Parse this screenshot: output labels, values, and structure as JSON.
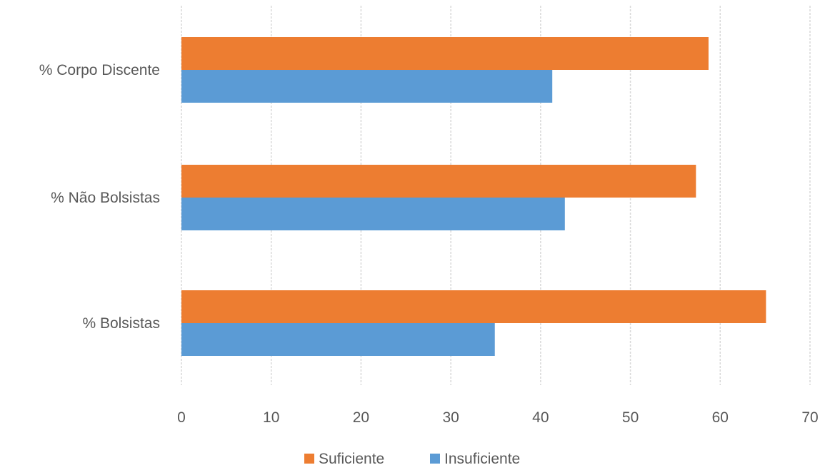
{
  "chart_data": {
    "type": "bar",
    "orientation": "horizontal",
    "categories": [
      "% Corpo Discente",
      "% Não Bolsistas",
      "% Bolsistas"
    ],
    "series": [
      {
        "name": "Suficiente",
        "color": "#ED7D31",
        "values": [
          58.7,
          57.3,
          65.1
        ]
      },
      {
        "name": "Insuficiente",
        "color": "#5B9BD5",
        "values": [
          41.3,
          42.7,
          34.9
        ]
      }
    ],
    "xlim": [
      0,
      70
    ],
    "xticks": [
      0,
      10,
      20,
      30,
      40,
      50,
      60,
      70
    ],
    "grid": true,
    "legend": {
      "position": "bottom",
      "entries": [
        "Suficiente",
        "Insuficiente"
      ]
    },
    "title": "",
    "xlabel": "",
    "ylabel": ""
  }
}
